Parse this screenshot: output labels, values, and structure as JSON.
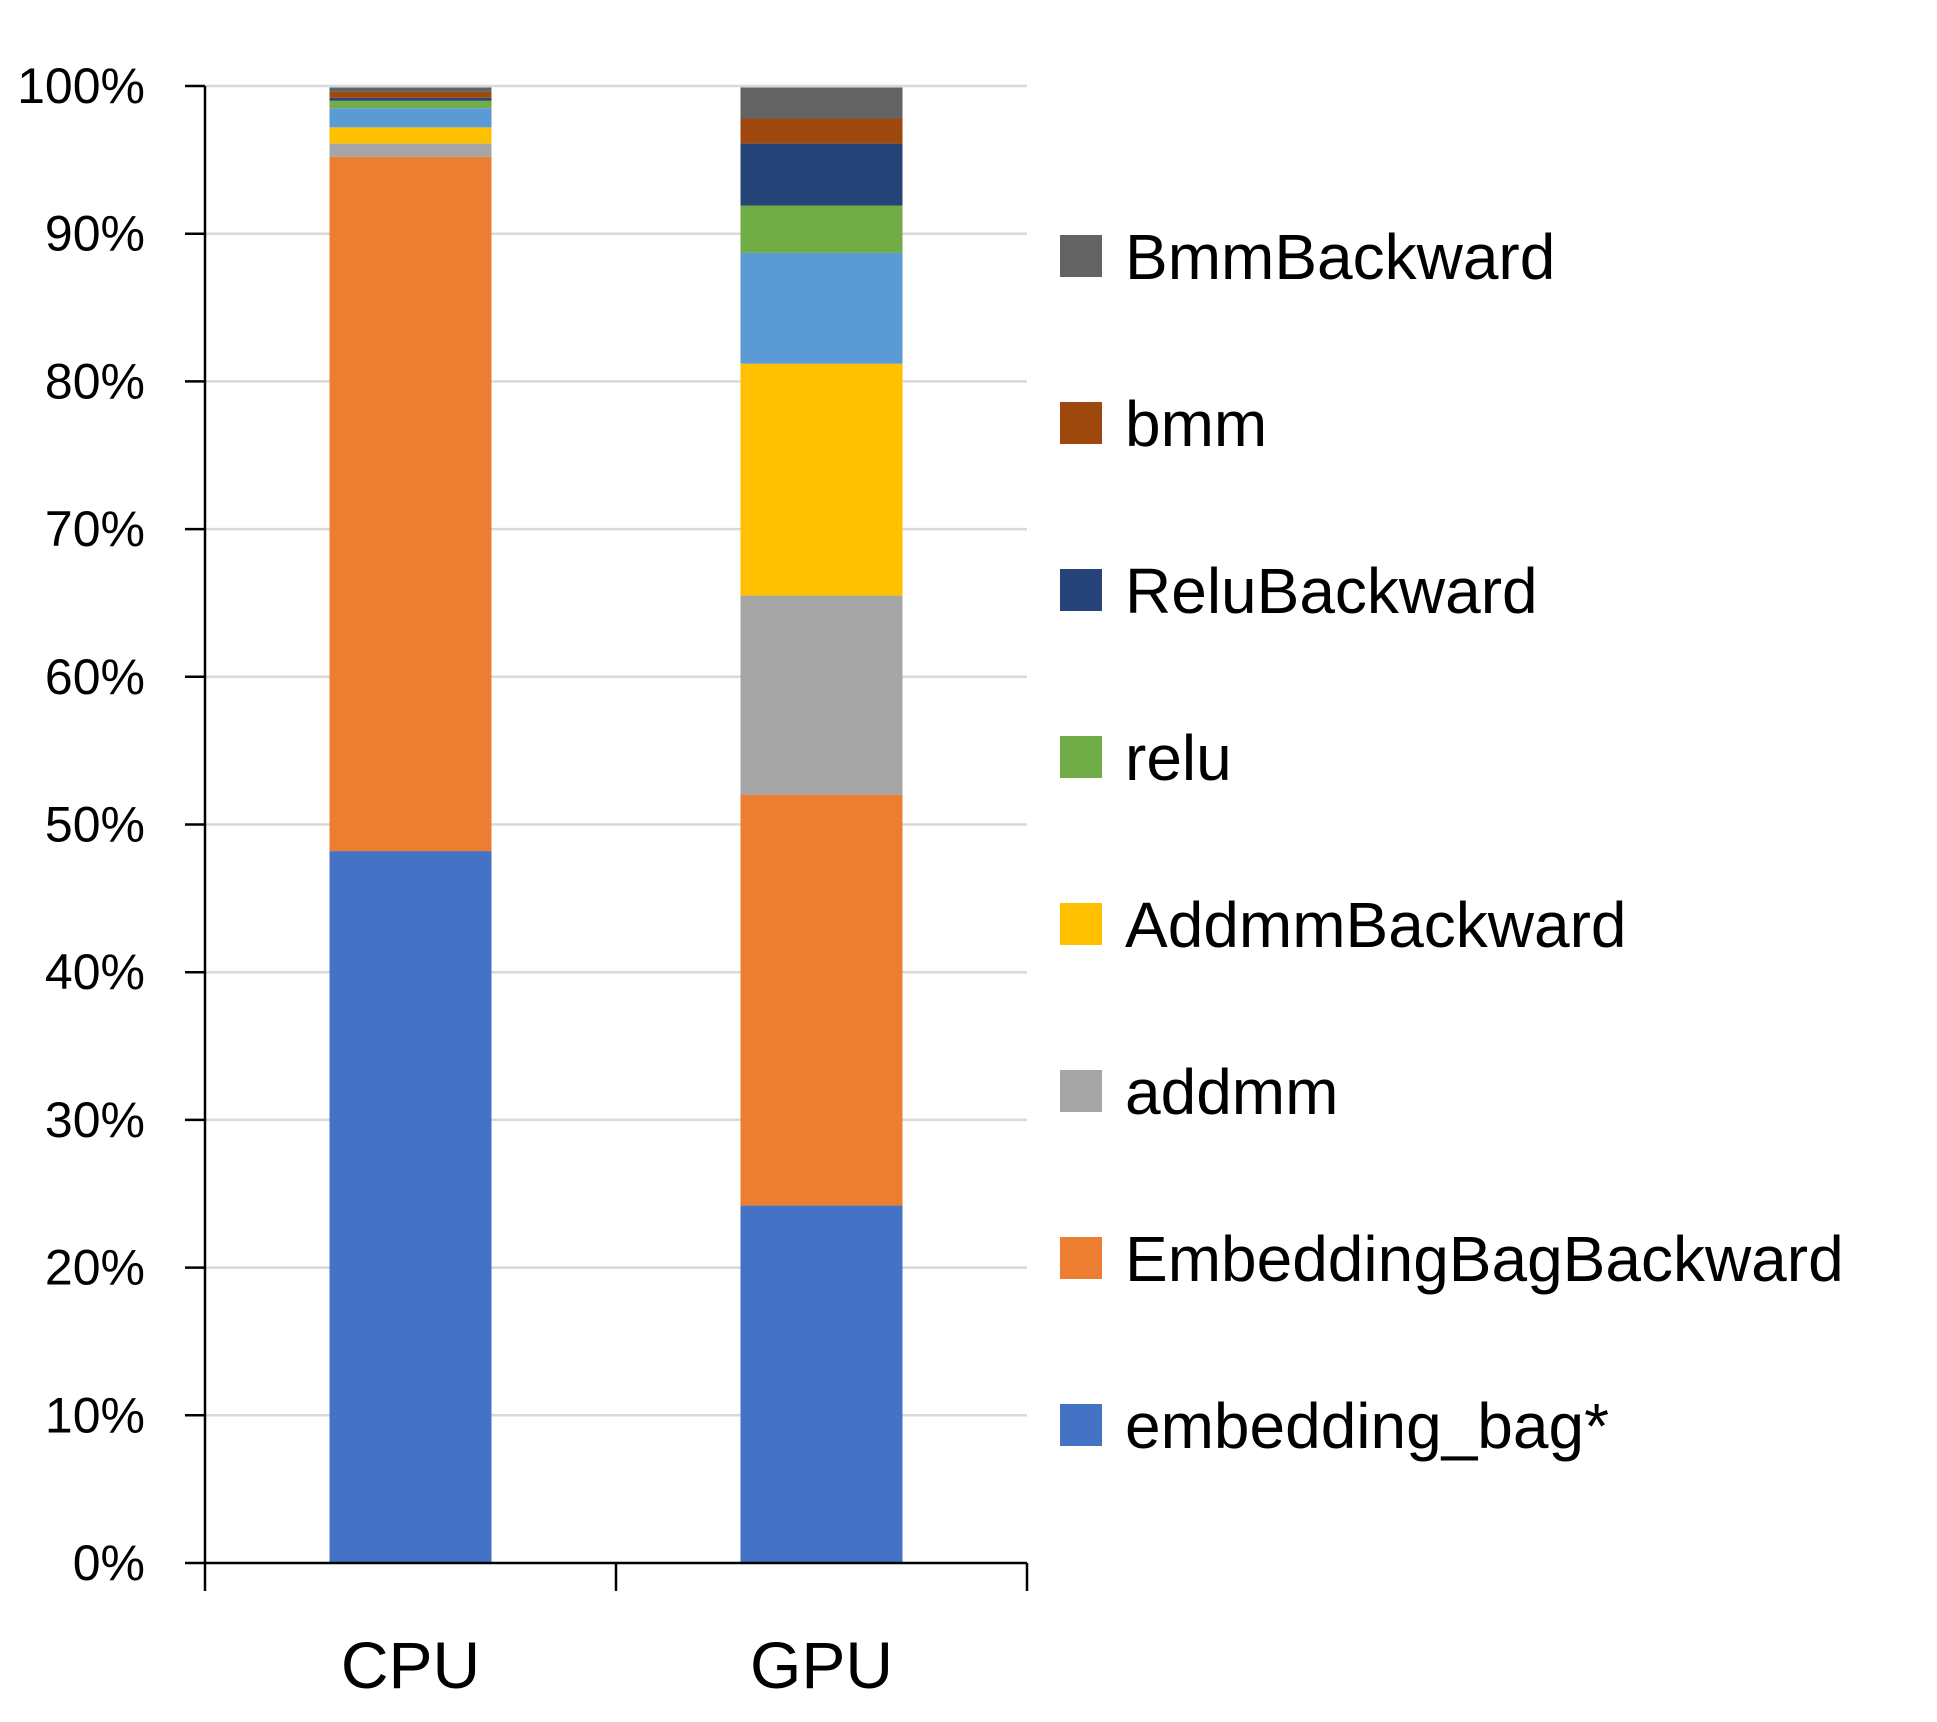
{
  "chart_data": {
    "type": "bar",
    "stacked": true,
    "categories": [
      "CPU",
      "GPU"
    ],
    "ylim": [
      0,
      100
    ],
    "yticks": [
      "0%",
      "10%",
      "20%",
      "30%",
      "40%",
      "50%",
      "60%",
      "70%",
      "80%",
      "90%",
      "100%"
    ],
    "grid": true,
    "legend_position": "right",
    "series": [
      {
        "name": "embedding_bag*",
        "color": "#4472C4",
        "values": [
          48.2,
          24.2
        ]
      },
      {
        "name": "EmbeddingBagBackward",
        "color": "#ED7D31",
        "values": [
          47.0,
          27.8
        ]
      },
      {
        "name": "addmm",
        "color": "#A5A5A5",
        "values": [
          0.9,
          13.5
        ]
      },
      {
        "name": "AddmmBackward",
        "color": "#FFC000",
        "values": [
          1.1,
          15.7
        ]
      },
      {
        "name": "relu",
        "color": "#5B9BD5",
        "values": [
          1.3,
          7.5
        ]
      },
      {
        "name": "relu",
        "color": "#70AD47",
        "values": [
          0.5,
          3.2
        ]
      },
      {
        "name": "ReluBackward",
        "color": "#264478",
        "values": [
          0.2,
          4.2
        ]
      },
      {
        "name": "bmm",
        "color": "#9E480E",
        "values": [
          0.4,
          1.7
        ]
      },
      {
        "name": "BmmBackward",
        "color": "#636363",
        "values": [
          0.3,
          2.1
        ]
      }
    ],
    "legend": [
      {
        "name": "BmmBackward",
        "color": "#636363"
      },
      {
        "name": "bmm",
        "color": "#9E480E"
      },
      {
        "name": "ReluBackward",
        "color": "#264478"
      },
      {
        "name": "relu",
        "color": "#70AD47"
      },
      {
        "name": "AddmmBackward",
        "color": "#FFC000"
      },
      {
        "name": "addmm",
        "color": "#A5A5A5"
      },
      {
        "name": "EmbeddingBagBackward",
        "color": "#ED7D31"
      },
      {
        "name": "embedding_bag*",
        "color": "#4472C4"
      }
    ]
  }
}
